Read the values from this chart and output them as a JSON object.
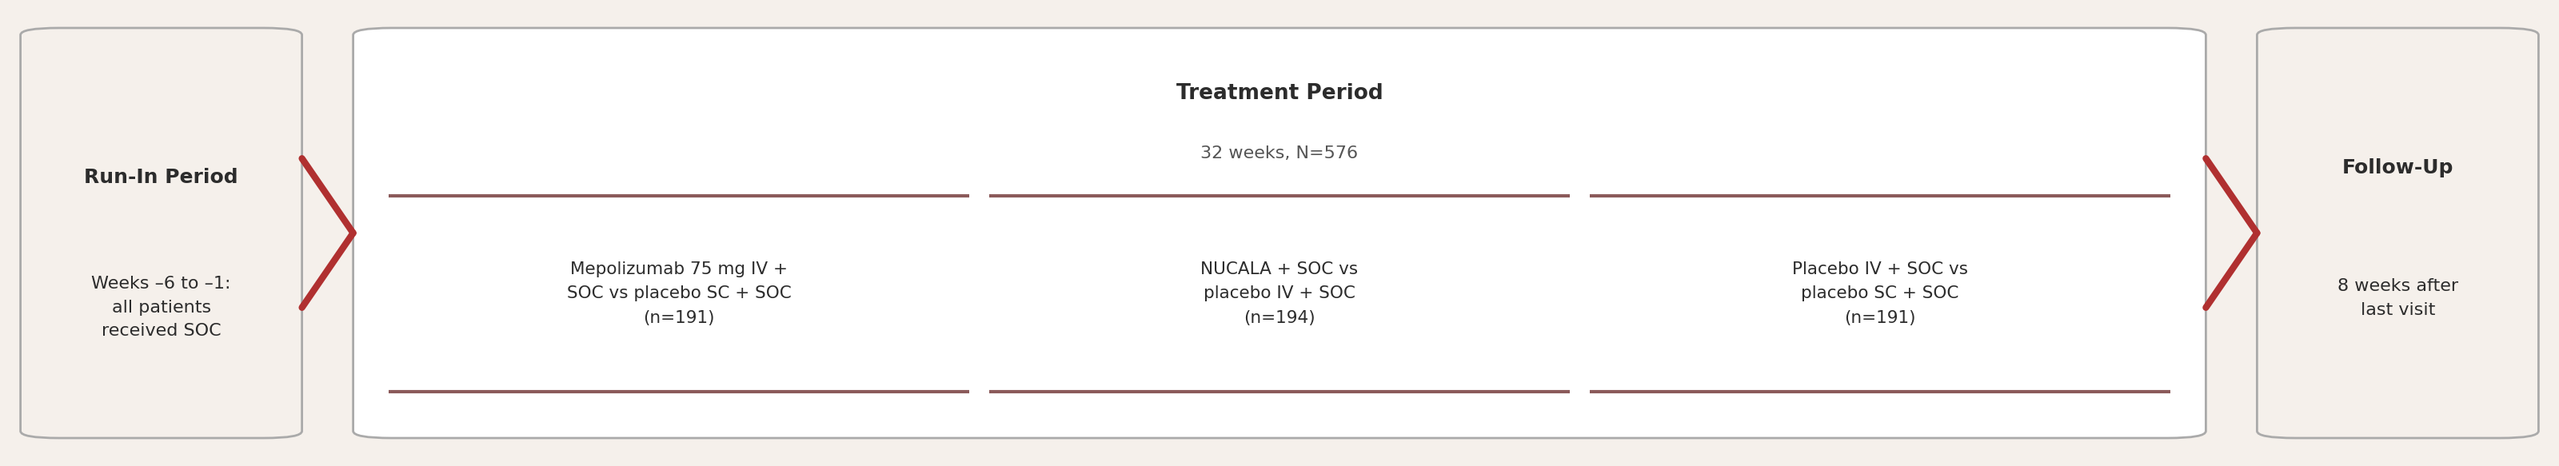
{
  "bg_color": "#f5f0eb",
  "box_bg_white": "#ffffff",
  "box_border_color": "#bbbbbb",
  "arrow_color": "#b03030",
  "divider_color": "#8b5a5a",
  "text_dark": "#2c2c2c",
  "text_medium": "#555555",
  "run_in_title": "Run-In Period",
  "run_in_body": "Weeks –6 to –1:\nall patients\nreceived SOC",
  "treatment_title": "Treatment Period",
  "treatment_subtitle": "32 weeks, N=576",
  "arm1_text": "Mepolizumab 75 mg IV +\nSOC vs placebo SC + SOC\n(n=191)",
  "arm2_text": "NUCALA + SOC vs\nplacebo IV + SOC\n(n=194)",
  "arm3_text": "Placebo IV + SOC vs\nplacebo SC + SOC\n(n=191)",
  "followup_title": "Follow-Up",
  "followup_body": "8 weeks after\nlast visit"
}
